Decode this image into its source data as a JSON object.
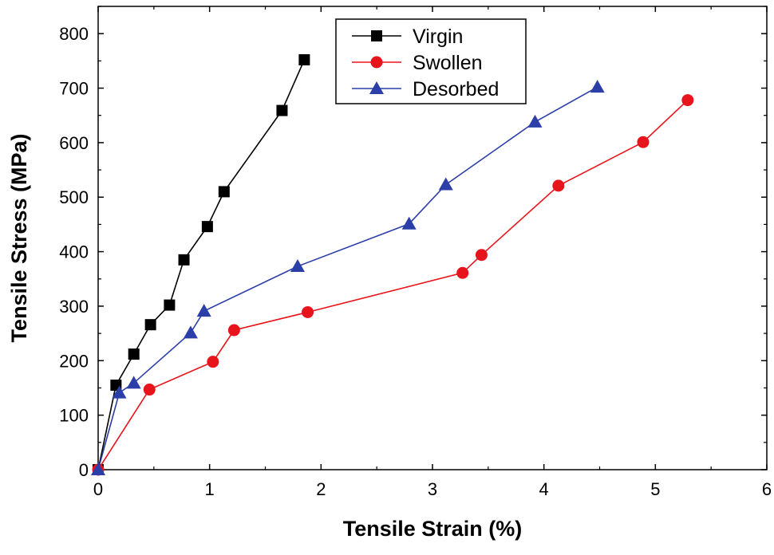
{
  "chart_data": {
    "type": "line",
    "title": "",
    "xlabel": "Tensile Strain (%)",
    "ylabel": "Tensile Stress (MPa)",
    "xlim": [
      0,
      6
    ],
    "ylim": [
      0,
      850
    ],
    "xticks": [
      0,
      1,
      2,
      3,
      4,
      5,
      6
    ],
    "yticks": [
      0,
      100,
      200,
      300,
      400,
      500,
      600,
      700,
      800
    ],
    "grid": false,
    "legend_position": "top-center",
    "series": [
      {
        "name": "Virgin",
        "color": "#000000",
        "marker": "square",
        "points": [
          [
            0,
            0
          ],
          [
            0.16,
            155
          ],
          [
            0.32,
            212
          ],
          [
            0.47,
            266
          ],
          [
            0.64,
            302
          ],
          [
            0.77,
            385
          ],
          [
            0.98,
            446
          ],
          [
            1.13,
            510
          ],
          [
            1.65,
            659
          ],
          [
            1.85,
            752
          ]
        ]
      },
      {
        "name": "Swollen",
        "color": "#e8141b",
        "marker": "circle",
        "points": [
          [
            0,
            0
          ],
          [
            0.46,
            147
          ],
          [
            1.03,
            198
          ],
          [
            1.22,
            256
          ],
          [
            1.88,
            289
          ],
          [
            3.27,
            361
          ],
          [
            3.44,
            394
          ],
          [
            4.13,
            521
          ],
          [
            4.89,
            601
          ],
          [
            5.29,
            678
          ]
        ]
      },
      {
        "name": "Desorbed",
        "color": "#2c3ea8",
        "marker": "triangle",
        "points": [
          [
            0,
            0
          ],
          [
            0.19,
            141
          ],
          [
            0.32,
            159
          ],
          [
            0.83,
            251
          ],
          [
            0.95,
            291
          ],
          [
            1.79,
            373
          ],
          [
            2.79,
            451
          ],
          [
            3.12,
            523
          ],
          [
            3.92,
            638
          ],
          [
            4.48,
            702
          ]
        ]
      }
    ]
  }
}
